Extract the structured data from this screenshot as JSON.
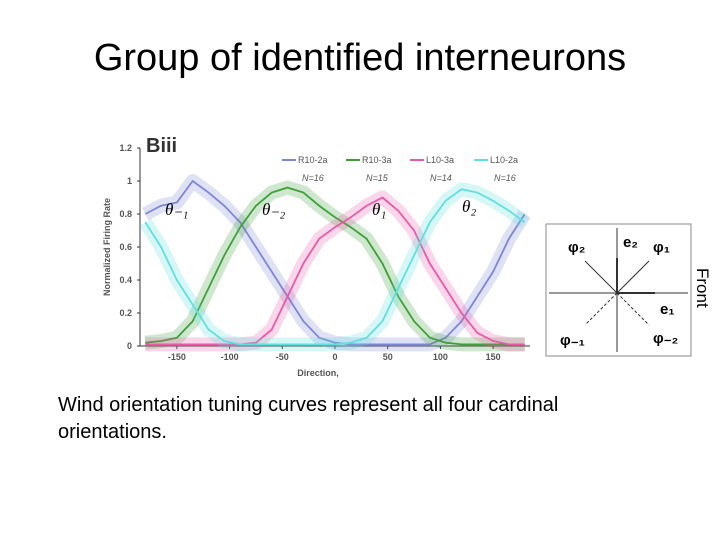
{
  "title": "Group of identified interneurons",
  "caption": "Wind orientation tuning curves represent all four cardinal orientations.",
  "diagram": {
    "labels": [
      "φ₂",
      "e₂",
      "φ₁",
      "e₁",
      "φ₋₁",
      "φ₋₂"
    ],
    "side_label": "Front"
  },
  "chart_data": {
    "type": "line",
    "panel_label": "Biii",
    "x_label": "Direction,",
    "y_label": "Normalized Firing Rate",
    "annotations": [
      "θ₋₁",
      "θ₋₂",
      "θ₁",
      "θ₂"
    ],
    "x": [
      -180,
      -165,
      -150,
      -135,
      -120,
      -105,
      -90,
      -75,
      -60,
      -45,
      -30,
      -15,
      0,
      15,
      30,
      45,
      60,
      75,
      90,
      105,
      120,
      135,
      150,
      165,
      180
    ],
    "xlim": [
      -185,
      185
    ],
    "xticks": [
      -150,
      -100,
      -50,
      0,
      50,
      100,
      150
    ],
    "ylim": [
      0,
      1.2
    ],
    "yticks": [
      0,
      0.2,
      0.4,
      0.6,
      0.8,
      1,
      1.2
    ],
    "series": [
      {
        "name": "R10-2a",
        "n": "N=16",
        "color": "#7f86d6",
        "values": [
          0.8,
          0.85,
          0.87,
          1.0,
          0.93,
          0.85,
          0.75,
          0.6,
          0.45,
          0.3,
          0.15,
          0.05,
          0.02,
          0.01,
          0.01,
          0.01,
          0.01,
          0.01,
          0.01,
          0.05,
          0.15,
          0.3,
          0.45,
          0.65,
          0.8
        ]
      },
      {
        "name": "R10-3a",
        "n": "N=15",
        "color": "#3fa03a",
        "values": [
          0.02,
          0.03,
          0.05,
          0.15,
          0.35,
          0.55,
          0.72,
          0.85,
          0.93,
          0.96,
          0.93,
          0.85,
          0.78,
          0.72,
          0.65,
          0.5,
          0.3,
          0.15,
          0.05,
          0.02,
          0.01,
          0.01,
          0.01,
          0.01,
          0.01
        ]
      },
      {
        "name": "L10-3a",
        "n": "N=14",
        "color": "#e85aa8",
        "values": [
          0.01,
          0.01,
          0.01,
          0.01,
          0.01,
          0.01,
          0.01,
          0.02,
          0.1,
          0.3,
          0.5,
          0.65,
          0.72,
          0.78,
          0.85,
          0.9,
          0.82,
          0.7,
          0.5,
          0.35,
          0.2,
          0.08,
          0.03,
          0.01,
          0.01
        ]
      },
      {
        "name": "L10-2a",
        "n": "N=16",
        "color": "#5fe0e0",
        "values": [
          0.75,
          0.6,
          0.4,
          0.25,
          0.1,
          0.03,
          0.01,
          0.01,
          0.01,
          0.01,
          0.01,
          0.01,
          0.01,
          0.02,
          0.05,
          0.15,
          0.35,
          0.55,
          0.75,
          0.88,
          0.95,
          0.93,
          0.88,
          0.82,
          0.75
        ]
      }
    ]
  }
}
